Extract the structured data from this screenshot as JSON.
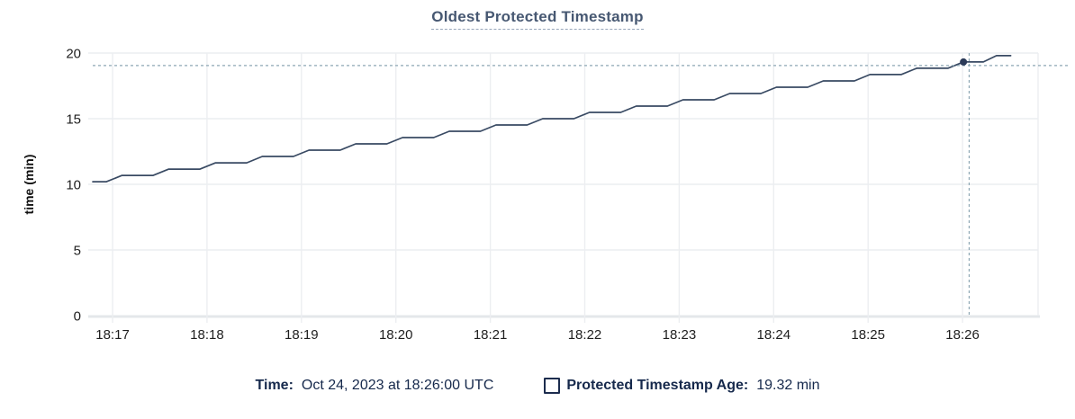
{
  "title": {
    "text": "Oldest Protected Timestamp"
  },
  "legend": {
    "time_label": "Time:",
    "time_value": "Oct 24, 2023 at 18:26:00 UTC",
    "series_swatch": "empty-square-outline",
    "series_label": "Protected Timestamp Age:",
    "series_value": "19.32 min"
  },
  "colors": {
    "title": "#475872",
    "line": "#394a63",
    "grid": "#eceef1",
    "axis_baseline": "#e4e7ea",
    "crosshair": "#8ea7b4",
    "hover_dot": "#2b3a58",
    "tick_text": "#1e1e1e",
    "legend_text": "#16294c"
  },
  "chart_data": {
    "type": "line",
    "title": "Oldest Protected Timestamp",
    "xlabel": "",
    "ylabel": "time (min)",
    "ylim": [
      0,
      20
    ],
    "yticks": [
      0,
      5,
      10,
      15,
      20
    ],
    "x_tick_labels": [
      "18:17",
      "18:18",
      "18:19",
      "18:20",
      "18:21",
      "18:22",
      "18:23",
      "18:24",
      "18:25",
      "18:26"
    ],
    "x_tick_minutes": [
      0,
      1,
      2,
      3,
      4,
      5,
      6,
      7,
      8,
      9
    ],
    "x_range_minutes": [
      -0.21,
      9.8
    ],
    "grid": true,
    "legend_position": "bottom",
    "series": [
      {
        "name": "Protected Timestamp Age",
        "unit": "min",
        "points": [
          [
            -0.21,
            10.2
          ],
          [
            -0.065,
            10.2
          ],
          [
            0.1,
            10.68
          ],
          [
            0.43,
            10.68
          ],
          [
            0.595,
            11.16
          ],
          [
            0.925,
            11.16
          ],
          [
            1.09,
            11.64
          ],
          [
            1.42,
            11.64
          ],
          [
            1.585,
            12.12
          ],
          [
            1.915,
            12.12
          ],
          [
            2.08,
            12.6
          ],
          [
            2.41,
            12.6
          ],
          [
            2.575,
            13.08
          ],
          [
            2.905,
            13.08
          ],
          [
            3.07,
            13.56
          ],
          [
            3.4,
            13.56
          ],
          [
            3.565,
            14.04
          ],
          [
            3.895,
            14.04
          ],
          [
            4.06,
            14.52
          ],
          [
            4.39,
            14.52
          ],
          [
            4.555,
            15.0
          ],
          [
            4.885,
            15.0
          ],
          [
            5.05,
            15.48
          ],
          [
            5.38,
            15.48
          ],
          [
            5.545,
            15.96
          ],
          [
            5.875,
            15.96
          ],
          [
            6.04,
            16.44
          ],
          [
            6.37,
            16.44
          ],
          [
            6.535,
            16.92
          ],
          [
            6.865,
            16.92
          ],
          [
            7.03,
            17.4
          ],
          [
            7.36,
            17.4
          ],
          [
            7.525,
            17.88
          ],
          [
            7.855,
            17.88
          ],
          [
            8.02,
            18.36
          ],
          [
            8.35,
            18.36
          ],
          [
            8.515,
            18.84
          ],
          [
            8.845,
            18.84
          ],
          [
            9.01,
            19.32
          ],
          [
            9.22,
            19.32
          ],
          [
            9.36,
            19.8
          ],
          [
            9.51,
            19.8
          ]
        ]
      }
    ],
    "hover": {
      "time_label": "Oct 24, 2023 at 18:26:00 UTC",
      "value_min": 19.32,
      "dot_point": [
        9.01,
        19.32
      ],
      "crosshair_point": [
        9.07,
        19.05
      ]
    }
  }
}
